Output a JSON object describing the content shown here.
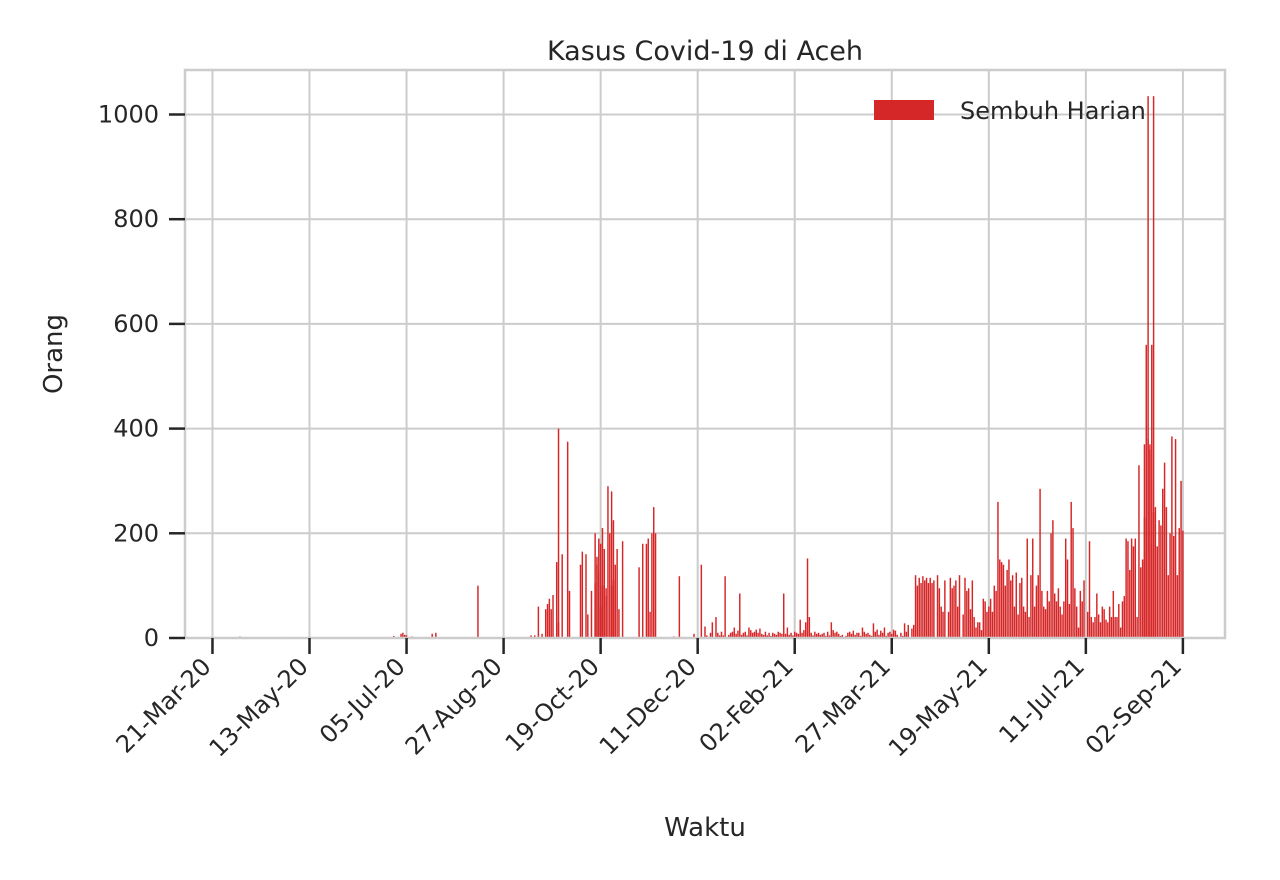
{
  "chart_data": {
    "type": "bar",
    "title": "Kasus Covid-19 di Aceh",
    "xlabel": "Waktu",
    "ylabel": "Orang",
    "x_start_date": "2020-03-14",
    "x_range": [
      "2020-03-06",
      "2021-09-25"
    ],
    "ylim": [
      0,
      1085
    ],
    "y_ticks": [
      0,
      200,
      400,
      600,
      800,
      1000
    ],
    "x_ticks": [
      {
        "label": "21-Mar-20",
        "date": "2020-03-21"
      },
      {
        "label": "13-May-20",
        "date": "2020-05-13"
      },
      {
        "label": "05-Jul-20",
        "date": "2020-07-05"
      },
      {
        "label": "27-Aug-20",
        "date": "2020-08-27"
      },
      {
        "label": "19-Oct-20",
        "date": "2020-10-19"
      },
      {
        "label": "11-Dec-20",
        "date": "2020-12-11"
      },
      {
        "label": "02-Feb-21",
        "date": "2021-02-02"
      },
      {
        "label": "27-Mar-21",
        "date": "2021-03-27"
      },
      {
        "label": "19-May-21",
        "date": "2021-05-19"
      },
      {
        "label": "11-Jul-21",
        "date": "2021-07-11"
      },
      {
        "label": "02-Sep-21",
        "date": "2021-09-02"
      }
    ],
    "grid": true,
    "legend_position": "top-right",
    "series": [
      {
        "name": "Sembuh Harian",
        "color": "#d62728",
        "segments": [
          {
            "from": "2020-03-14",
            "to": "2020-06-25",
            "values": [
              0,
              0,
              0,
              0,
              0,
              0,
              0,
              0,
              0,
              0,
              0,
              0,
              0,
              0,
              0,
              0,
              0,
              0,
              0,
              0,
              0,
              0,
              0,
              0,
              0,
              0,
              0,
              0,
              0,
              0,
              0,
              0,
              0,
              0,
              0,
              0,
              0,
              0,
              0,
              0,
              0,
              0,
              0,
              0,
              0,
              0,
              0,
              0,
              0,
              0,
              0,
              0,
              0,
              0,
              0,
              0,
              0,
              0,
              0,
              0,
              0,
              0,
              0,
              0,
              0,
              0,
              0,
              0,
              0,
              0,
              0,
              0,
              0,
              0,
              0,
              0,
              0,
              0,
              0,
              0,
              0,
              0,
              0,
              0,
              0,
              0,
              0,
              0,
              0,
              0,
              0,
              0,
              0,
              0,
              0,
              0,
              0,
              0,
              0,
              0,
              0,
              0,
              0,
              0,
              0,
              0,
              0,
              0,
              0,
              0,
              0,
              0,
              0,
              0,
              0
            ]
          },
          {
            "from": "2020-04-05",
            "to": "2020-04-05",
            "values": [
              3
            ]
          },
          {
            "from": "2020-04-28",
            "to": "2020-04-28",
            "values": [
              2
            ]
          },
          {
            "from": "2020-06-26",
            "to": "2020-09-27",
            "values": [
              2,
              0,
              4,
              0,
              0,
              0,
              8,
              10,
              6,
              5,
              0,
              0,
              3,
              0,
              0,
              0,
              0,
              0,
              0,
              0,
              0,
              0,
              0,
              8,
              0,
              10,
              0,
              0,
              0,
              0,
              0,
              0,
              0,
              0,
              0,
              0,
              0,
              0,
              0,
              0,
              0,
              0,
              0,
              0,
              0,
              0,
              0,
              0,
              100,
              0,
              0,
              0,
              0,
              0,
              0,
              0,
              0,
              0,
              0,
              0,
              0,
              0,
              0,
              0,
              0,
              0,
              0,
              0,
              0,
              0,
              0,
              0,
              0,
              0,
              0,
              0,
              0,
              5,
              0,
              5,
              0,
              0,
              0,
              0,
              0,
              55,
              65,
              75,
              5,
              82,
              0,
              0,
              30,
              0,
              0
            ]
          },
          {
            "from": "2020-09-11",
            "to": "2020-10-31",
            "values": [
              0,
              0,
              0,
              0,
              60,
              0,
              8,
              0,
              0,
              0,
              0,
              55,
              0,
              0,
              145,
              400,
              0,
              160,
              0,
              0,
              375,
              90,
              0,
              0,
              0,
              0,
              0,
              140,
              165,
              0,
              160,
              45,
              0,
              90,
              0,
              200,
              155,
              190,
              180,
              210,
              170,
              95,
              0,
              0,
              100,
              110,
              140,
              170,
              55,
              0,
              185
            ]
          },
          {
            "from": "2020-10-16",
            "to": "2020-10-31",
            "values": [
              105,
              140,
              125,
              60,
              100,
              150,
              80,
              290,
              200,
              280,
              225,
              0,
              0,
              0,
              0,
              0
            ]
          },
          {
            "from": "2020-11-01",
            "to": "2021-03-29",
            "values": [
              0,
              0,
              0,
              0,
              0,
              0,
              0,
              0,
              135,
              0,
              180,
              0,
              180,
              190,
              50,
              200,
              250,
              200,
              0,
              0,
              0,
              0,
              0,
              2,
              0,
              0,
              0,
              3,
              0,
              0,
              118,
              0,
              0,
              0,
              0,
              0,
              0,
              0,
              8,
              0,
              0,
              0,
              140,
              0,
              22,
              5,
              0,
              10,
              30,
              2,
              40,
              10,
              5,
              12,
              5,
              118,
              0,
              6,
              10,
              12,
              20,
              8,
              14,
              85,
              6,
              10,
              12,
              5,
              20,
              15,
              10,
              12,
              16,
              10,
              18,
              8,
              6,
              12,
              5,
              10,
              4,
              10,
              8,
              6,
              12,
              10,
              8,
              85,
              8,
              20,
              6,
              10,
              5,
              12,
              10,
              8,
              35,
              10,
              15,
              30,
              152,
              40,
              10,
              5,
              12,
              8,
              10,
              6,
              8,
              10,
              4,
              12,
              5,
              30,
              15,
              10,
              12,
              8,
              4,
              6,
              2,
              4,
              10,
              12,
              8,
              14,
              6,
              10,
              10,
              4,
              20,
              12,
              8,
              10,
              6,
              4,
              28,
              12,
              16,
              6,
              14,
              10,
              20,
              4,
              10,
              12,
              8,
              16,
              14,
              6,
              0,
              2,
              4,
              0,
              12,
              18,
              0
            ]
          },
          {
            "from": "2021-03-30",
            "to": "2021-05-31",
            "values": [
              0,
              2,
              10,
              0,
              28,
              0,
              25,
              0,
              18,
              25,
              120,
              100,
              115,
              105,
              118,
              110,
              115,
              105,
              115,
              105,
              110,
              0,
              120,
              95,
              60,
              50,
              110,
              0,
              50,
              115,
              95,
              100,
              110,
              60,
              120,
              0,
              45,
              115,
              90,
              95,
              55,
              110,
              40,
              20,
              30,
              30,
              15,
              75,
              70,
              50,
              60,
              75,
              50,
              100,
              90,
              260,
              150,
              145,
              140,
              100,
              130,
              150,
              110
            ]
          },
          {
            "from": "2021-06-01",
            "to": "2021-08-17",
            "values": [
              120,
              60,
              125,
              45,
              105,
              115,
              60,
              50,
              190,
              40,
              120,
              190,
              60,
              100,
              120,
              285,
              90,
              60,
              55,
              90,
              70,
              200,
              225,
              85,
              70,
              95,
              60,
              45,
              70,
              190,
              150,
              65,
              260,
              210,
              95,
              60,
              20,
              90,
              70,
              110,
              0,
              50,
              185,
              40,
              30,
              40,
              85,
              45,
              30,
              60,
              55,
              35,
              30,
              60,
              40,
              90,
              40,
              40,
              65,
              20,
              70,
              80,
              190,
              185,
              130,
              190,
              175,
              190,
              40,
              330,
              135,
              150,
              230,
              165,
              380,
              370,
              560,
              1035
            ]
          },
          {
            "from": "2021-08-12",
            "to": "2021-09-02",
            "values": [
              370,
              560,
              1035,
              360,
              180,
              240,
              250,
              175,
              225,
              215,
              285,
              335,
              250,
              120,
              200,
              385,
              195,
              380,
              120,
              210,
              300,
              205
            ]
          }
        ]
      }
    ]
  }
}
